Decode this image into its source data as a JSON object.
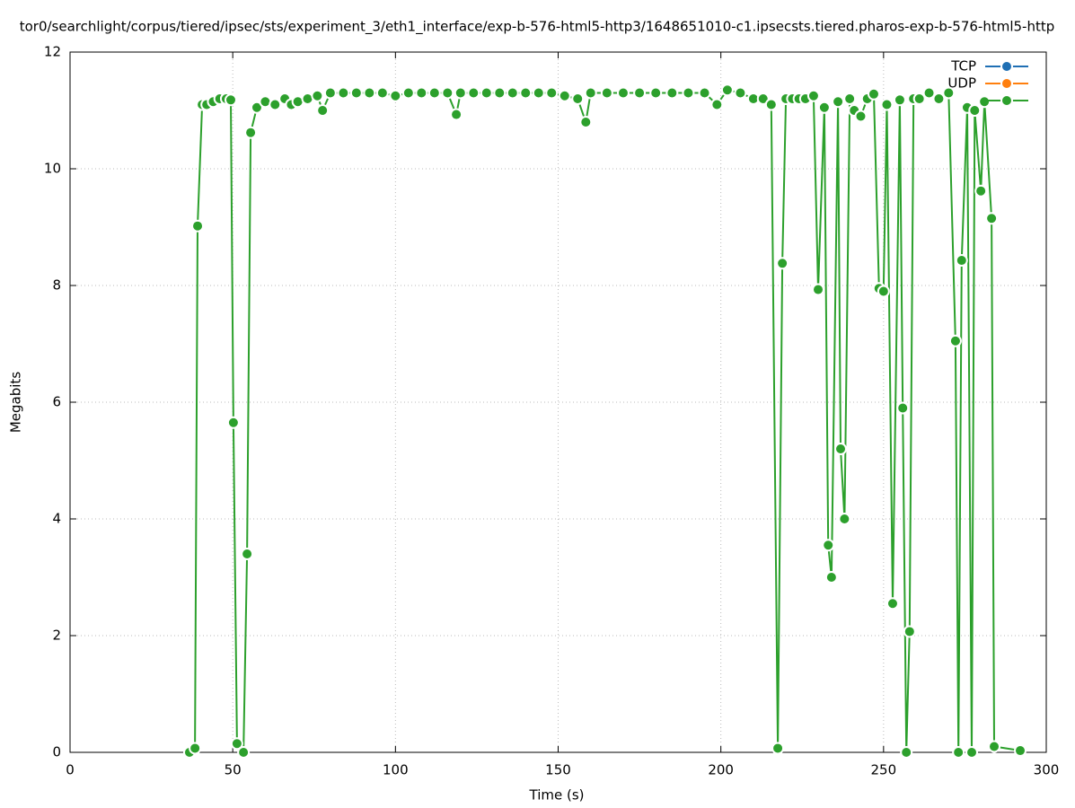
{
  "chart_data": {
    "type": "line",
    "title": "tor0/searchlight/corpus/tiered/ipsec/sts/experiment_3/eth1_interface/exp-b-576-html5-http3/1648651010-c1.ipsecsts.tiered.pharos-exp-b-576-html5-http",
    "x_label": "Time (s)",
    "y_label": "Megabits",
    "xlim": [
      0,
      300
    ],
    "xticks": [
      0,
      50,
      100,
      150,
      200,
      250,
      300
    ],
    "ylim": [
      0,
      12
    ],
    "yticks": [
      0,
      2,
      4,
      6,
      8,
      10,
      12
    ],
    "grid": true,
    "legend": "top-right",
    "series": [
      {
        "name": "TCP",
        "color": "#1f6fb4",
        "x": [],
        "values": []
      },
      {
        "name": "UDP",
        "color": "#ff7f0e",
        "x": [],
        "values": []
      },
      {
        "color": "#2ca02c",
        "x": [
          36.7,
          38.4,
          39.2,
          40.6,
          42,
          44,
          46,
          48,
          49.4,
          50.2,
          51.3,
          53.3,
          54.4,
          55.5,
          57.4,
          60,
          63,
          66,
          68,
          70,
          73,
          76,
          77.6,
          80,
          84,
          88,
          92,
          96,
          100,
          104,
          108,
          112,
          116,
          118.7,
          120,
          124,
          128,
          132,
          136,
          140,
          144,
          148,
          152,
          156,
          158.5,
          160,
          165,
          170,
          175,
          180,
          185,
          190,
          195,
          198.8,
          202,
          206,
          210,
          213,
          215.5,
          217.5,
          218.9,
          220,
          222,
          224,
          226,
          228.5,
          229.9,
          231.8,
          233,
          234,
          236,
          236.8,
          238,
          239.6,
          241,
          243,
          245,
          247,
          248.6,
          250,
          251,
          252.8,
          255,
          255.9,
          257,
          258,
          259.2,
          261,
          264,
          267,
          270,
          272.1,
          273,
          274,
          275.7,
          277.1,
          278,
          279.9,
          281,
          283.2,
          284,
          292
        ],
        "values": [
          0,
          0.07,
          9.02,
          11.1,
          11.1,
          11.15,
          11.2,
          11.2,
          11.18,
          5.65,
          0.15,
          0,
          3.4,
          10.62,
          11.05,
          11.15,
          11.1,
          11.2,
          11.1,
          11.15,
          11.2,
          11.25,
          11.0,
          11.3,
          11.3,
          11.3,
          11.3,
          11.3,
          11.25,
          11.3,
          11.3,
          11.3,
          11.3,
          10.93,
          11.3,
          11.3,
          11.3,
          11.3,
          11.3,
          11.3,
          11.3,
          11.3,
          11.25,
          11.2,
          10.8,
          11.3,
          11.3,
          11.3,
          11.3,
          11.3,
          11.3,
          11.3,
          11.3,
          11.1,
          11.35,
          11.3,
          11.2,
          11.2,
          11.1,
          0.07,
          8.38,
          11.2,
          11.2,
          11.2,
          11.2,
          11.25,
          7.93,
          11.05,
          3.55,
          3.0,
          11.15,
          5.2,
          4.0,
          11.2,
          11.0,
          10.9,
          11.2,
          11.28,
          7.95,
          7.9,
          11.1,
          2.55,
          11.18,
          5.9,
          0,
          2.07,
          11.2,
          11.2,
          11.3,
          11.2,
          11.3,
          7.05,
          0,
          8.43,
          11.05,
          0,
          11.0,
          9.62,
          11.15,
          9.15,
          0.1,
          0.03
        ]
      }
    ]
  }
}
